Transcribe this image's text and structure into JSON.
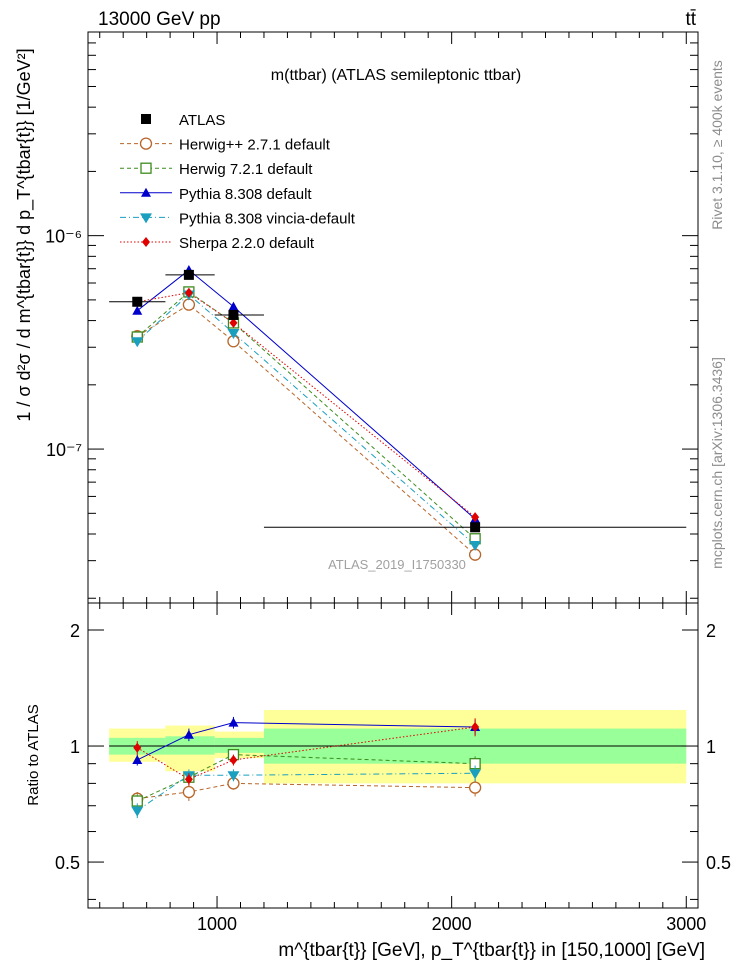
{
  "header": {
    "left_label": "13000 GeV pp",
    "right_label": "tt̄"
  },
  "side_labels": {
    "rivet": "Rivet 3.1.10, ≥ 400k events",
    "mcplots": "mcplots.cern.ch [arXiv:1306.3436]"
  },
  "watermark": "ATLAS_2019_I1750330",
  "chart_data": [
    {
      "type": "scatter",
      "title": "m(ttbar) (ATLAS semileptonic ttbar)",
      "ylabel": "1 / σ d²σ / d m^{tbar{t}} d p_T^{tbar{t}} [1/GeV²]",
      "xlabel": "",
      "xlim": [
        450,
        3050
      ],
      "ylim": [
        1.9e-08,
        9e-06
      ],
      "yscale": "log",
      "yticks": [
        {
          "value": 1e-07,
          "label": "10⁻⁷"
        },
        {
          "value": 1e-06,
          "label": "10⁻⁶"
        }
      ],
      "legend_position": "top-left",
      "data": {
        "name": "ATLAS",
        "color": "#000000",
        "x": [
          660,
          880,
          1070,
          2100
        ],
        "xerr": [
          [
            540,
            780
          ],
          [
            780,
            990
          ],
          [
            990,
            1200
          ],
          [
            1200,
            3000
          ]
        ],
        "y": [
          4.9e-07,
          6.55e-07,
          4.25e-07,
          4.3e-08
        ]
      },
      "series": [
        {
          "name": "Herwig++ 2.7.1 default",
          "color": "#b8652a",
          "marker": "open-circle",
          "line": "dashed",
          "x": [
            660,
            880,
            1070,
            2100
          ],
          "y": [
            3.38e-07,
            4.75e-07,
            3.2e-07,
            3.2e-08
          ]
        },
        {
          "name": "Herwig 7.2.1 default",
          "color": "#3c8c1e",
          "marker": "open-square",
          "line": "dashed",
          "x": [
            660,
            880,
            1070,
            2100
          ],
          "y": [
            3.35e-07,
            5.45e-07,
            3.9e-07,
            3.8e-08
          ]
        },
        {
          "name": "Pythia 8.308 default",
          "color": "#0000cc",
          "marker": "triangle-up",
          "line": "solid",
          "x": [
            660,
            880,
            1070,
            2100
          ],
          "y": [
            4.45e-07,
            6.9e-07,
            4.65e-07,
            4.7e-08
          ]
        },
        {
          "name": "Pythia 8.308 vincia-default",
          "color": "#1a9fbf",
          "marker": "triangle-down",
          "line": "dashdot",
          "x": [
            660,
            880,
            1070,
            2100
          ],
          "y": [
            3.2e-07,
            5.3e-07,
            3.5e-07,
            3.55e-08
          ]
        },
        {
          "name": "Sherpa 2.2.0 default",
          "color": "#e00000",
          "marker": "diamond",
          "line": "dotted",
          "x": [
            660,
            880,
            1070,
            2100
          ],
          "y": [
            4.9e-07,
            5.4e-07,
            3.9e-07,
            4.8e-08
          ]
        }
      ]
    },
    {
      "type": "scatter",
      "title": "",
      "ylabel": "Ratio to ATLAS",
      "xlabel": "m^{tbar{t}} [GeV], p_T^{tbar{t}} in [150,1000] [GeV]",
      "xlim": [
        450,
        3050
      ],
      "ylim": [
        0.38,
        2.35
      ],
      "yscale": "log",
      "yticks": [
        {
          "value": 0.5,
          "label": "0.5"
        },
        {
          "value": 1,
          "label": "1"
        },
        {
          "value": 2,
          "label": "2"
        }
      ],
      "xticks": [
        {
          "value": 1000,
          "label": "1000"
        },
        {
          "value": 2000,
          "label": "2000"
        },
        {
          "value": 3000,
          "label": "3000"
        }
      ],
      "bands": [
        {
          "x": [
            540,
            780
          ],
          "stat": [
            0.95,
            1.05
          ],
          "total": [
            0.91,
            1.11
          ]
        },
        {
          "x": [
            780,
            990
          ],
          "stat": [
            0.95,
            1.06
          ],
          "total": [
            0.86,
            1.13
          ]
        },
        {
          "x": [
            990,
            1200
          ],
          "stat": [
            0.96,
            1.05
          ],
          "total": [
            0.93,
            1.09
          ]
        },
        {
          "x": [
            1200,
            3000
          ],
          "stat": [
            0.9,
            1.11
          ],
          "total": [
            0.8,
            1.24
          ]
        }
      ],
      "series": [
        {
          "name": "Herwig++ 2.7.1 default",
          "color": "#b8652a",
          "marker": "open-circle",
          "line": "dashed",
          "x": [
            660,
            880,
            1070,
            2100
          ],
          "y": [
            0.73,
            0.76,
            0.8,
            0.78
          ],
          "yerr": [
            0.03,
            0.04,
            0.03,
            0.04
          ]
        },
        {
          "name": "Herwig 7.2.1 default",
          "color": "#3c8c1e",
          "marker": "open-square",
          "line": "dashed",
          "x": [
            660,
            880,
            1070,
            2100
          ],
          "y": [
            0.72,
            0.83,
            0.95,
            0.9
          ],
          "yerr": [
            0.03,
            0.03,
            0.03,
            0.04
          ]
        },
        {
          "name": "Pythia 8.308 default",
          "color": "#0000cc",
          "marker": "triangle-up",
          "line": "solid",
          "x": [
            660,
            880,
            1070,
            2100
          ],
          "y": [
            0.92,
            1.07,
            1.15,
            1.12
          ],
          "yerr": [
            0.03,
            0.04,
            0.04,
            0.05
          ]
        },
        {
          "name": "Pythia 8.308 vincia-default",
          "color": "#1a9fbf",
          "marker": "triangle-down",
          "line": "dashdot",
          "x": [
            660,
            880,
            1070,
            2100
          ],
          "y": [
            0.68,
            0.84,
            0.84,
            0.85
          ],
          "yerr": [
            0.03,
            0.03,
            0.03,
            0.04
          ]
        },
        {
          "name": "Sherpa 2.2.0 default",
          "color": "#e00000",
          "marker": "diamond",
          "line": "dotted",
          "x": [
            660,
            880,
            1070,
            2100
          ],
          "y": [
            0.99,
            0.82,
            0.92,
            1.12
          ],
          "yerr": [
            0.04,
            0.03,
            0.03,
            0.06
          ]
        }
      ]
    }
  ]
}
